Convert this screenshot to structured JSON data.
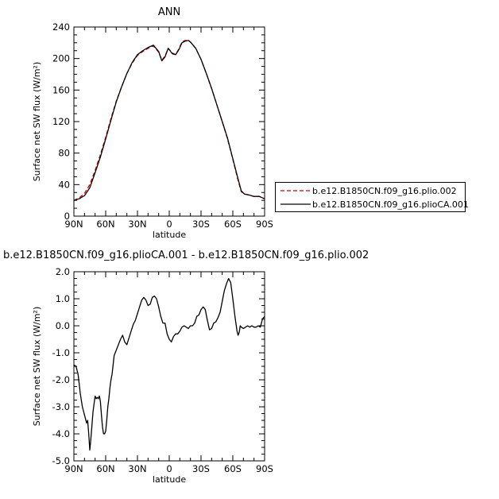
{
  "chart_data": [
    {
      "type": "line",
      "title": "ANN",
      "xlabel": "latitude",
      "ylabel": "Surface net SW flux (W/m²)",
      "xlim": [
        90,
        -90
      ],
      "ylim": [
        0,
        240
      ],
      "xticks": [
        90,
        60,
        30,
        0,
        -30,
        -60,
        -90
      ],
      "xtick_labels": [
        "90N",
        "60N",
        "30N",
        "0",
        "30S",
        "60S",
        "90S"
      ],
      "yticks": [
        0,
        40,
        80,
        120,
        160,
        200,
        240
      ],
      "ytick_labels": [
        "0",
        "40",
        "80",
        "120",
        "160",
        "200",
        "240"
      ],
      "legend_position": "right",
      "series": [
        {
          "name": "b.e12.B1850CN.f09_g16.plio.002",
          "color": "#cc0000",
          "style": "dashed",
          "x": [
            90,
            85,
            80,
            75,
            70,
            65,
            60,
            55,
            50,
            45,
            40,
            35,
            30,
            25,
            20,
            15,
            10,
            7,
            4,
            1,
            -3,
            -6,
            -9,
            -12,
            -15,
            -18,
            -20,
            -25,
            -30,
            -35,
            -40,
            -45,
            -50,
            -55,
            -60,
            -65,
            -68,
            -71,
            -75,
            -80,
            -85,
            -90
          ],
          "y": [
            20,
            23,
            29,
            40,
            58,
            78,
            100,
            124,
            146,
            164,
            181,
            194,
            204,
            209,
            213,
            216,
            208,
            198,
            203,
            213,
            207,
            205,
            212,
            221,
            223,
            223,
            221,
            213,
            199,
            181,
            162,
            141,
            120,
            98,
            72,
            45,
            31,
            28,
            27,
            25,
            25,
            22
          ]
        },
        {
          "name": "b.e12.B1850CN.f09_g16.plioCA.001",
          "color": "#000000",
          "style": "solid",
          "x": [
            90,
            85,
            80,
            75,
            70,
            65,
            60,
            55,
            50,
            45,
            40,
            35,
            30,
            25,
            20,
            15,
            10,
            7,
            4,
            1,
            -3,
            -6,
            -9,
            -12,
            -15,
            -18,
            -20,
            -25,
            -30,
            -35,
            -40,
            -45,
            -50,
            -55,
            -60,
            -65,
            -68,
            -71,
            -75,
            -80,
            -85,
            -90
          ],
          "y": [
            20,
            22,
            26,
            36,
            55,
            75,
            98,
            122,
            145,
            164,
            181,
            195,
            205,
            210,
            214,
            217,
            209,
            197,
            202,
            213,
            206,
            205,
            211,
            220,
            222,
            223,
            221,
            213,
            199,
            181,
            162,
            141,
            120,
            99,
            73,
            47,
            32,
            28,
            27,
            25,
            25,
            22
          ]
        }
      ]
    },
    {
      "type": "line",
      "title": "b.e12.B1850CN.f09_g16.plioCA.001 - b.e12.B1850CN.f09_g16.plio.002",
      "xlabel": "latitude",
      "ylabel": "Surface net SW flux (W/m²)",
      "xlim": [
        90,
        -90
      ],
      "ylim": [
        -5.0,
        2.0
      ],
      "xticks": [
        90,
        60,
        30,
        0,
        -30,
        -60,
        -90
      ],
      "xtick_labels": [
        "90N",
        "60N",
        "30N",
        "0",
        "30S",
        "60S",
        "90S"
      ],
      "yticks": [
        -5.0,
        -4.0,
        -3.0,
        -2.0,
        -1.0,
        0.0,
        1.0,
        2.0
      ],
      "ytick_labels": [
        "-5.0",
        "-4.0",
        "-3.0",
        "-2.0",
        "-1.0",
        "0.0",
        "1.0",
        "2.0"
      ],
      "series": [
        {
          "color": "#000000",
          "style": "solid",
          "x": [
            90,
            88,
            86,
            84,
            82,
            80,
            78,
            77,
            76,
            75,
            74,
            72,
            70,
            69,
            68,
            67,
            66,
            65,
            64,
            63,
            62,
            61,
            60,
            59,
            58,
            57,
            56,
            55,
            54,
            52,
            50,
            48,
            46,
            44,
            42,
            40,
            38,
            36,
            34,
            32,
            30,
            28,
            26,
            24,
            22,
            20,
            18,
            16,
            14,
            12,
            10,
            8,
            6,
            4,
            2,
            0,
            -2,
            -4,
            -6,
            -8,
            -10,
            -12,
            -14,
            -16,
            -18,
            -20,
            -22,
            -24,
            -26,
            -28,
            -30,
            -32,
            -34,
            -36,
            -38,
            -40,
            -42,
            -44,
            -46,
            -48,
            -50,
            -52,
            -54,
            -56,
            -58,
            -60,
            -62,
            -64,
            -65,
            -66,
            -67,
            -68,
            -70,
            -72,
            -74,
            -76,
            -78,
            -80,
            -82,
            -84,
            -86,
            -88,
            -90
          ],
          "y": [
            -1.45,
            -1.5,
            -1.8,
            -2.5,
            -3.0,
            -3.3,
            -3.6,
            -3.5,
            -4.0,
            -4.6,
            -4.2,
            -3.2,
            -2.6,
            -2.7,
            -2.65,
            -2.7,
            -2.6,
            -2.8,
            -3.3,
            -3.75,
            -4.0,
            -4.0,
            -3.9,
            -3.5,
            -3.0,
            -2.7,
            -2.3,
            -2.0,
            -1.8,
            -1.1,
            -0.9,
            -0.7,
            -0.5,
            -0.35,
            -0.6,
            -0.7,
            -0.45,
            -0.2,
            0.05,
            0.2,
            0.45,
            0.7,
            0.95,
            1.05,
            0.95,
            0.75,
            0.8,
            1.05,
            1.1,
            1.0,
            0.7,
            0.35,
            0.1,
            0.1,
            -0.3,
            -0.5,
            -0.6,
            -0.4,
            -0.3,
            -0.3,
            -0.2,
            -0.05,
            0.0,
            -0.05,
            -0.1,
            0.0,
            0.0,
            0.1,
            0.35,
            0.4,
            0.6,
            0.7,
            0.6,
            0.2,
            -0.15,
            -0.1,
            0.1,
            0.15,
            0.3,
            0.5,
            0.9,
            1.3,
            1.55,
            1.75,
            1.6,
            1.0,
            0.35,
            -0.2,
            -0.35,
            -0.25,
            0.0,
            -0.05,
            -0.1,
            -0.05,
            0.0,
            -0.05,
            0.0,
            -0.05,
            -0.05,
            0.0,
            -0.05,
            0.25,
            0.35
          ]
        }
      ]
    }
  ]
}
